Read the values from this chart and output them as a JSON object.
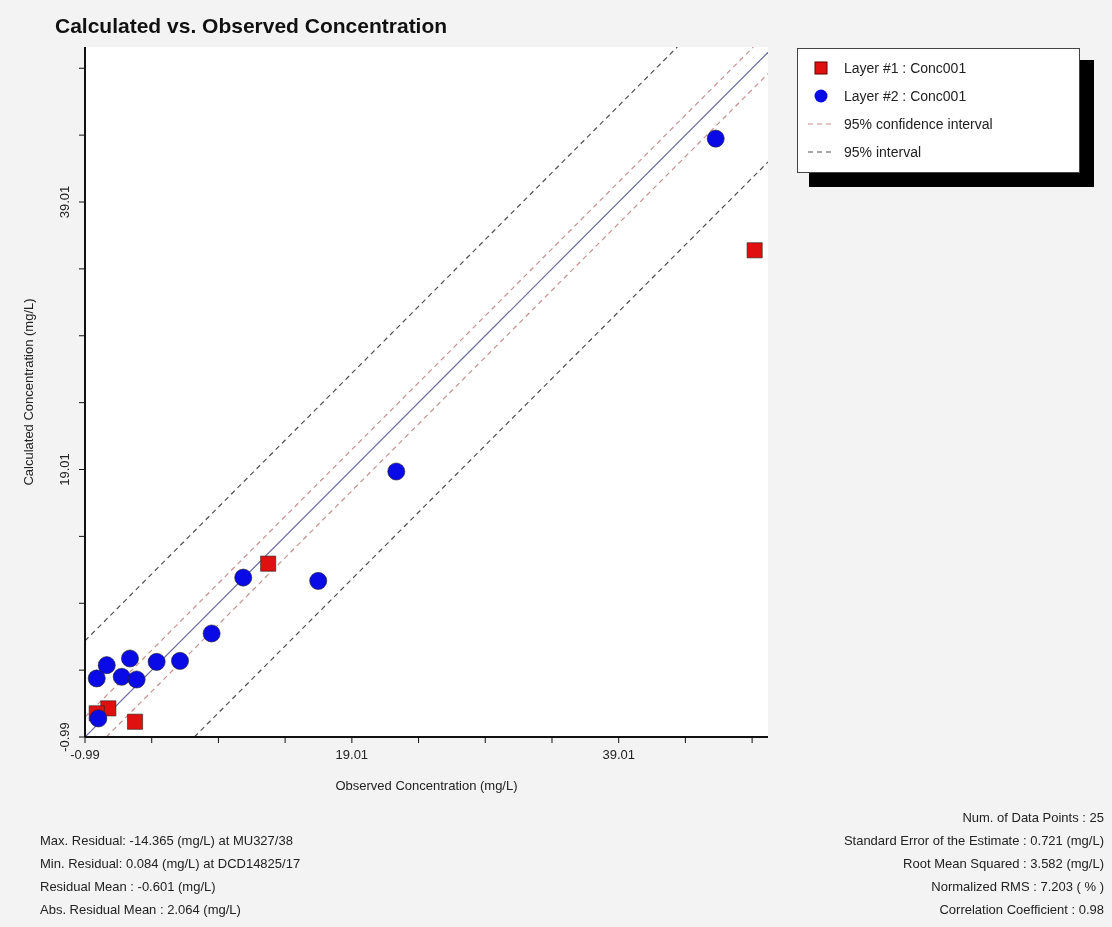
{
  "chart_data": {
    "type": "scatter",
    "title": "Calculated vs. Observed Concentration",
    "xlabel": "Observed Concentration (mg/L)",
    "ylabel": "Calculated Concentration (mg/L)",
    "xlim": [
      -0.99,
      50.2
    ],
    "ylim": [
      -0.99,
      50.6
    ],
    "xticks": [
      -0.99,
      {
        "value": 4.01,
        "label": null
      },
      {
        "value": 9.01,
        "label": null
      },
      {
        "value": 14.01,
        "label": null
      },
      19.01,
      {
        "value": 24.01,
        "label": null
      },
      {
        "value": 29.01,
        "label": null
      },
      {
        "value": 34.01,
        "label": null
      },
      39.01,
      {
        "value": 44.01,
        "label": null
      },
      {
        "value": 49.01,
        "label": null
      }
    ],
    "yticks": [
      -0.99,
      {
        "value": 4.01,
        "label": null
      },
      {
        "value": 9.01,
        "label": null
      },
      {
        "value": 14.01,
        "label": null
      },
      19.01,
      {
        "value": 24.01,
        "label": null
      },
      {
        "value": 29.01,
        "label": null
      },
      {
        "value": 34.01,
        "label": null
      },
      39.01,
      {
        "value": 44.01,
        "label": null
      },
      {
        "value": 49.01,
        "label": null
      }
    ],
    "series": [
      {
        "name": "Layer #1 : Conc001",
        "type": "scatter",
        "marker": "square",
        "color": "#e01010",
        "x": [
          0.76,
          2.76,
          12.74,
          -0.11,
          49.2
        ],
        "values": [
          1.15,
          0.15,
          11.97,
          0.78,
          35.4
        ]
      },
      {
        "name": "Layer #2 : Conc001",
        "type": "scatter",
        "marker": "circle",
        "color": "#0a0ae6",
        "x": [
          0.01,
          -0.11,
          0.64,
          1.76,
          2.88,
          2.38,
          4.38,
          6.13,
          8.5,
          10.87,
          16.49,
          22.34,
          46.28
        ],
        "values": [
          0.4,
          3.39,
          4.38,
          3.51,
          3.31,
          4.88,
          4.63,
          4.7,
          6.75,
          10.93,
          10.68,
          18.86,
          43.75
        ]
      },
      {
        "name": "95% confidence interval",
        "type": "line",
        "line_style": "dashed",
        "color": "#c89090",
        "x": [
          -0.99,
          49.1
        ],
        "values": [
          0.5,
          50.6
        ]
      },
      {
        "type": "line",
        "line_style": "dashed",
        "color": "#c89090",
        "x": [
          0.6,
          50.2
        ],
        "values": [
          -0.99,
          48.6
        ]
      },
      {
        "name": "95% interval",
        "type": "line",
        "line_style": "dashed",
        "color": "#505050",
        "x": [
          -0.99,
          43.4
        ],
        "values": [
          6.2,
          50.6
        ]
      },
      {
        "type": "line",
        "line_style": "dashed",
        "color": "#505050",
        "x": [
          7.2,
          50.2
        ],
        "values": [
          -0.99,
          42.0
        ]
      },
      {
        "type": "line",
        "line_style": "solid",
        "color": "#6a6aa0",
        "x": [
          -0.99,
          50.2
        ],
        "values": [
          -0.99,
          50.2
        ]
      }
    ],
    "legend": "top right",
    "annotations": [
      "Max. Residual: -14.365 (mg/L) at MU327/38",
      "Min. Residual: 0.084 (mg/L) at DCD14825/17",
      "Residual Mean : -0.601 (mg/L)",
      "Abs. Residual Mean : 2.064 (mg/L)",
      "Num. of Data Points : 25",
      "Standard Error of the Estimate : 0.721 (mg/L)",
      "Root Mean Squared : 3.582 (mg/L)",
      "Normalized RMS : 7.203 ( % )",
      "Correlation Coefficient : 0.98"
    ]
  }
}
